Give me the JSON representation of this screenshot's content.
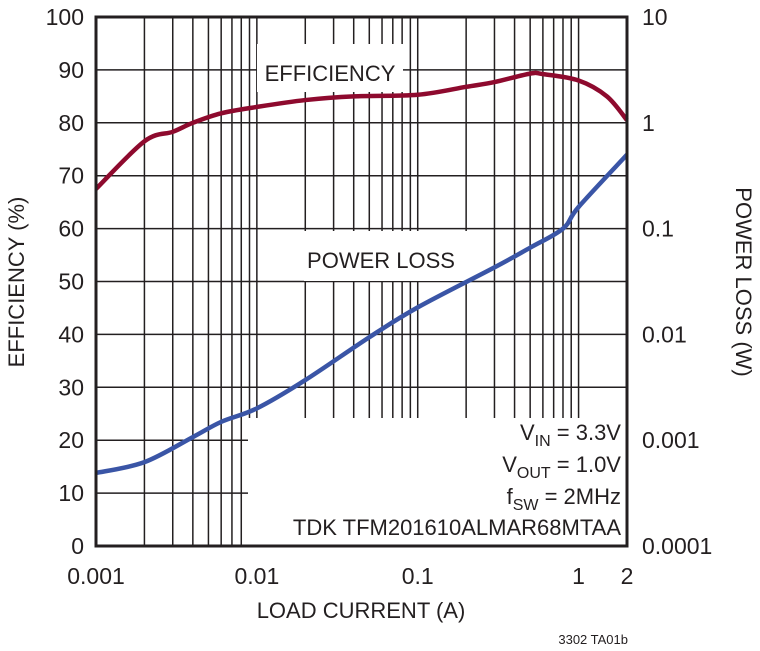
{
  "chart_data": {
    "type": "line",
    "title": "",
    "xlabel": "LOAD CURRENT (A)",
    "ylabel_left": "EFFICIENCY (%)",
    "ylabel_right": "POWER LOSS (W)",
    "x_scale": "log",
    "xlim": [
      0.001,
      2
    ],
    "ylim_left": [
      0,
      100
    ],
    "ylim_right": [
      0.0001,
      10
    ],
    "y_right_scale": "log",
    "grid": true,
    "x_ticks": [
      "0.001",
      "0.01",
      "0.1",
      "1",
      "2"
    ],
    "x_tick_values": [
      0.001,
      0.01,
      0.1,
      1,
      2
    ],
    "y_left_ticks": [
      "0",
      "10",
      "20",
      "30",
      "40",
      "50",
      "60",
      "70",
      "80",
      "90",
      "100"
    ],
    "y_right_ticks": [
      "0.0001",
      "0.001",
      "0.01",
      "0.1",
      "1",
      "10"
    ],
    "series": [
      {
        "name": "EFFICIENCY",
        "axis": "left",
        "color": "#8e0a2e",
        "x": [
          0.001,
          0.002,
          0.003,
          0.004,
          0.006,
          0.01,
          0.02,
          0.04,
          0.1,
          0.2,
          0.3,
          0.5,
          0.6,
          1,
          1.5,
          2
        ],
        "y": [
          67.5,
          76.5,
          78.3,
          80,
          81.8,
          83,
          84.3,
          85,
          85.3,
          86.8,
          87.7,
          89.3,
          89.2,
          88,
          85,
          80.5
        ]
      },
      {
        "name": "POWER LOSS",
        "axis": "right",
        "color": "#3a55a6",
        "x": [
          0.001,
          0.002,
          0.004,
          0.006,
          0.01,
          0.02,
          0.05,
          0.1,
          0.3,
          0.5,
          0.8,
          1,
          2
        ],
        "y": [
          0.00049,
          0.00062,
          0.00107,
          0.00149,
          0.002,
          0.0037,
          0.0094,
          0.018,
          0.043,
          0.066,
          0.1,
          0.16,
          0.5
        ]
      }
    ],
    "annotations": {
      "vin": {
        "main": "V",
        "sub": "IN",
        "rest": " = 3.3V"
      },
      "vout": {
        "main": "V",
        "sub": "OUT",
        "rest": " = 1.0V"
      },
      "fsw": {
        "main": "f",
        "sub": "SW",
        "rest": " = 2MHz"
      },
      "inductor": "TDK TFM201610ALMAR68MTAA"
    },
    "figure_id": "3302 TA01b"
  }
}
